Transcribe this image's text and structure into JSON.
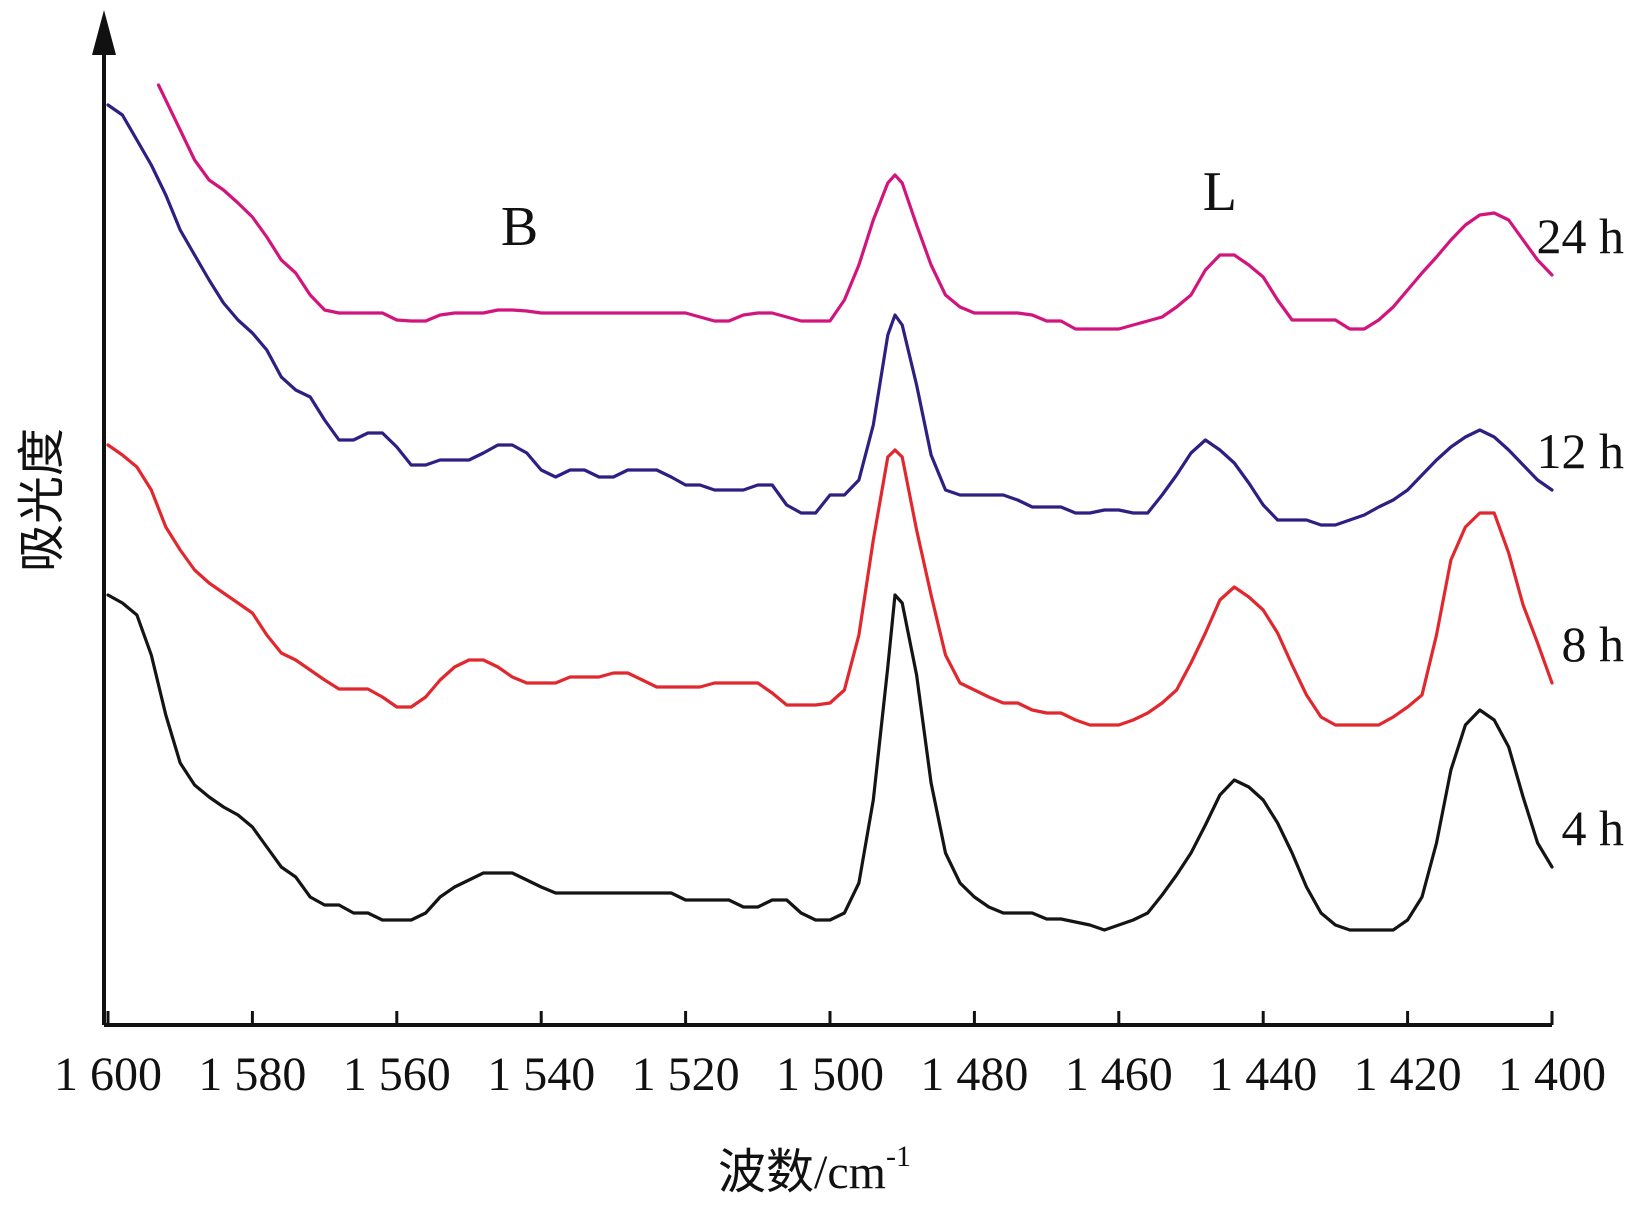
{
  "chart_data": {
    "type": "line",
    "xlabel": "波数/cm",
    "xlabel_sup": "-1",
    "ylabel": "吸光度",
    "xlim": [
      1600,
      1400
    ],
    "x_reversed": true,
    "y_arrow": true,
    "grid": false,
    "xticks": [
      1600,
      1580,
      1560,
      1540,
      1520,
      1500,
      1480,
      1460,
      1440,
      1420,
      1400
    ],
    "xtick_labels": [
      "1 600",
      "1 580",
      "1 560",
      "1 540",
      "1 520",
      "1 500",
      "1 480",
      "1 460",
      "1 440",
      "1 420",
      "1 400"
    ],
    "annotations": [
      {
        "text": "B",
        "x": 1543,
        "y": 7.8
      },
      {
        "text": "L",
        "x": 1446,
        "y": 8.15
      }
    ],
    "series": [
      {
        "name": "24 h",
        "color": "#d2157d",
        "x": [
          1593,
          1590,
          1588,
          1586,
          1584,
          1582,
          1580,
          1578,
          1576,
          1574,
          1572,
          1570,
          1568,
          1566,
          1564,
          1562,
          1560,
          1558,
          1556,
          1554,
          1552,
          1550,
          1548,
          1546,
          1544,
          1542,
          1540,
          1535,
          1530,
          1525,
          1520,
          1518,
          1516,
          1514,
          1512,
          1510,
          1508,
          1506,
          1504,
          1502,
          1500,
          1498,
          1496,
          1494,
          1492,
          1491,
          1490,
          1488,
          1486,
          1484,
          1482,
          1480,
          1478,
          1476,
          1474,
          1472,
          1470,
          1468,
          1466,
          1464,
          1462,
          1460,
          1458,
          1456,
          1454,
          1452,
          1450,
          1448,
          1446,
          1444,
          1442,
          1440,
          1438,
          1436,
          1434,
          1432,
          1430,
          1428,
          1426,
          1424,
          1422,
          1420,
          1418,
          1416,
          1414,
          1412,
          1410,
          1408,
          1406,
          1404,
          1402,
          1400
        ],
        "y": [
          9.4,
          8.95,
          8.65,
          8.45,
          8.35,
          8.22,
          8.08,
          7.88,
          7.65,
          7.52,
          7.3,
          7.15,
          7.12,
          7.12,
          7.12,
          7.12,
          7.05,
          7.04,
          7.04,
          7.1,
          7.12,
          7.12,
          7.12,
          7.15,
          7.15,
          7.14,
          7.12,
          7.12,
          7.12,
          7.12,
          7.12,
          7.08,
          7.04,
          7.04,
          7.1,
          7.12,
          7.12,
          7.08,
          7.04,
          7.04,
          7.04,
          7.25,
          7.6,
          8.05,
          8.42,
          8.5,
          8.42,
          8.0,
          7.6,
          7.3,
          7.18,
          7.12,
          7.12,
          7.12,
          7.12,
          7.1,
          7.04,
          7.04,
          6.96,
          6.96,
          6.96,
          6.96,
          7.0,
          7.04,
          7.08,
          7.18,
          7.3,
          7.55,
          7.7,
          7.7,
          7.6,
          7.48,
          7.25,
          7.05,
          7.05,
          7.05,
          7.05,
          6.96,
          6.96,
          7.05,
          7.18,
          7.35,
          7.52,
          7.68,
          7.85,
          8.0,
          8.1,
          8.12,
          8.05,
          7.85,
          7.65,
          7.5
        ]
      },
      {
        "name": "12 h",
        "color": "#2e1f82",
        "x": [
          1600,
          1598,
          1596,
          1594,
          1592,
          1590,
          1588,
          1586,
          1584,
          1582,
          1580,
          1578,
          1576,
          1574,
          1572,
          1570,
          1568,
          1566,
          1564,
          1562,
          1560,
          1558,
          1556,
          1554,
          1552,
          1550,
          1548,
          1546,
          1544,
          1542,
          1540,
          1538,
          1536,
          1534,
          1532,
          1530,
          1528,
          1526,
          1524,
          1522,
          1520,
          1518,
          1516,
          1514,
          1512,
          1510,
          1508,
          1506,
          1504,
          1502,
          1500,
          1498,
          1496,
          1494,
          1492,
          1491,
          1490,
          1488,
          1486,
          1484,
          1482,
          1480,
          1478,
          1476,
          1474,
          1472,
          1470,
          1468,
          1466,
          1464,
          1462,
          1460,
          1458,
          1456,
          1454,
          1452,
          1450,
          1448,
          1446,
          1444,
          1442,
          1440,
          1438,
          1436,
          1434,
          1432,
          1430,
          1428,
          1426,
          1424,
          1422,
          1420,
          1418,
          1416,
          1414,
          1412,
          1410,
          1408,
          1406,
          1404,
          1402,
          1400
        ],
        "y": [
          9.2,
          9.1,
          8.85,
          8.6,
          8.3,
          7.95,
          7.7,
          7.45,
          7.22,
          7.05,
          6.92,
          6.75,
          6.48,
          6.35,
          6.28,
          6.05,
          5.85,
          5.85,
          5.92,
          5.92,
          5.78,
          5.6,
          5.6,
          5.65,
          5.65,
          5.65,
          5.72,
          5.8,
          5.8,
          5.72,
          5.55,
          5.48,
          5.55,
          5.55,
          5.48,
          5.48,
          5.55,
          5.55,
          5.55,
          5.48,
          5.4,
          5.4,
          5.35,
          5.35,
          5.35,
          5.4,
          5.4,
          5.2,
          5.12,
          5.12,
          5.3,
          5.3,
          5.45,
          6.0,
          6.9,
          7.1,
          7.0,
          6.4,
          5.7,
          5.35,
          5.3,
          5.3,
          5.3,
          5.3,
          5.25,
          5.18,
          5.18,
          5.18,
          5.12,
          5.12,
          5.15,
          5.15,
          5.12,
          5.12,
          5.3,
          5.5,
          5.72,
          5.85,
          5.75,
          5.62,
          5.42,
          5.2,
          5.05,
          5.05,
          5.05,
          5.0,
          5.0,
          5.05,
          5.1,
          5.18,
          5.25,
          5.35,
          5.5,
          5.65,
          5.78,
          5.88,
          5.95,
          5.88,
          5.75,
          5.6,
          5.45,
          5.35
        ]
      },
      {
        "name": "8 h",
        "color": "#e0282e",
        "x": [
          1600,
          1598,
          1596,
          1594,
          1592,
          1590,
          1588,
          1586,
          1584,
          1582,
          1580,
          1578,
          1576,
          1574,
          1572,
          1570,
          1568,
          1566,
          1564,
          1562,
          1560,
          1558,
          1556,
          1554,
          1552,
          1550,
          1548,
          1546,
          1544,
          1542,
          1540,
          1538,
          1536,
          1534,
          1532,
          1530,
          1528,
          1526,
          1524,
          1522,
          1520,
          1518,
          1516,
          1514,
          1512,
          1510,
          1508,
          1506,
          1504,
          1502,
          1500,
          1498,
          1496,
          1494,
          1492,
          1491,
          1490,
          1488,
          1486,
          1484,
          1482,
          1480,
          1478,
          1476,
          1474,
          1472,
          1470,
          1468,
          1466,
          1464,
          1462,
          1460,
          1458,
          1456,
          1454,
          1452,
          1450,
          1448,
          1446,
          1444,
          1442,
          1440,
          1438,
          1436,
          1434,
          1432,
          1430,
          1428,
          1426,
          1424,
          1422,
          1420,
          1418,
          1416,
          1414,
          1412,
          1410,
          1408,
          1406,
          1404,
          1402,
          1400
        ],
        "y": [
          5.8,
          5.7,
          5.58,
          5.35,
          4.98,
          4.75,
          4.55,
          4.42,
          4.32,
          4.22,
          4.12,
          3.9,
          3.72,
          3.65,
          3.55,
          3.45,
          3.36,
          3.36,
          3.36,
          3.28,
          3.18,
          3.18,
          3.28,
          3.45,
          3.58,
          3.65,
          3.65,
          3.58,
          3.48,
          3.42,
          3.42,
          3.42,
          3.48,
          3.48,
          3.48,
          3.52,
          3.52,
          3.45,
          3.38,
          3.38,
          3.38,
          3.38,
          3.42,
          3.42,
          3.42,
          3.42,
          3.32,
          3.2,
          3.2,
          3.2,
          3.22,
          3.35,
          3.9,
          4.85,
          5.68,
          5.75,
          5.68,
          4.95,
          4.3,
          3.7,
          3.42,
          3.35,
          3.28,
          3.22,
          3.22,
          3.15,
          3.12,
          3.12,
          3.05,
          3.0,
          3.0,
          3.0,
          3.05,
          3.12,
          3.22,
          3.35,
          3.62,
          3.92,
          4.25,
          4.38,
          4.28,
          4.15,
          3.92,
          3.6,
          3.3,
          3.08,
          3.0,
          3.0,
          3.0,
          3.0,
          3.08,
          3.18,
          3.3,
          3.9,
          4.65,
          4.98,
          5.12,
          5.12,
          4.72,
          4.2,
          3.82,
          3.42
        ]
      },
      {
        "name": "4 h",
        "color": "#141414",
        "x": [
          1600,
          1598,
          1596,
          1594,
          1592,
          1590,
          1588,
          1586,
          1584,
          1582,
          1580,
          1578,
          1576,
          1574,
          1572,
          1570,
          1568,
          1566,
          1564,
          1562,
          1560,
          1558,
          1556,
          1554,
          1552,
          1550,
          1548,
          1546,
          1544,
          1542,
          1540,
          1538,
          1536,
          1534,
          1532,
          1530,
          1528,
          1526,
          1524,
          1522,
          1520,
          1518,
          1516,
          1514,
          1512,
          1510,
          1508,
          1506,
          1504,
          1502,
          1500,
          1498,
          1496,
          1494,
          1492,
          1491,
          1490,
          1488,
          1486,
          1484,
          1482,
          1480,
          1478,
          1476,
          1474,
          1472,
          1470,
          1468,
          1466,
          1464,
          1462,
          1460,
          1458,
          1456,
          1454,
          1452,
          1450,
          1448,
          1446,
          1444,
          1442,
          1440,
          1438,
          1436,
          1434,
          1432,
          1430,
          1428,
          1426,
          1424,
          1422,
          1420,
          1418,
          1416,
          1414,
          1412,
          1410,
          1408,
          1406,
          1404,
          1402,
          1400
        ],
        "y": [
          4.3,
          4.22,
          4.1,
          3.7,
          3.1,
          2.62,
          2.4,
          2.28,
          2.18,
          2.1,
          1.98,
          1.78,
          1.58,
          1.48,
          1.28,
          1.2,
          1.2,
          1.12,
          1.12,
          1.05,
          1.05,
          1.05,
          1.12,
          1.28,
          1.38,
          1.45,
          1.52,
          1.52,
          1.52,
          1.45,
          1.38,
          1.32,
          1.32,
          1.32,
          1.32,
          1.32,
          1.32,
          1.32,
          1.32,
          1.32,
          1.25,
          1.25,
          1.25,
          1.25,
          1.18,
          1.18,
          1.25,
          1.25,
          1.12,
          1.05,
          1.05,
          1.12,
          1.42,
          2.25,
          3.58,
          4.3,
          4.22,
          3.5,
          2.42,
          1.72,
          1.42,
          1.28,
          1.18,
          1.12,
          1.12,
          1.12,
          1.06,
          1.06,
          1.03,
          1.0,
          0.95,
          1.0,
          1.05,
          1.12,
          1.3,
          1.5,
          1.72,
          2.0,
          2.3,
          2.45,
          2.38,
          2.25,
          2.02,
          1.72,
          1.38,
          1.12,
          1.0,
          0.95,
          0.95,
          0.95,
          0.95,
          1.05,
          1.28,
          1.82,
          2.55,
          3.0,
          3.15,
          3.05,
          2.78,
          2.28,
          1.82,
          1.58
        ]
      }
    ]
  }
}
